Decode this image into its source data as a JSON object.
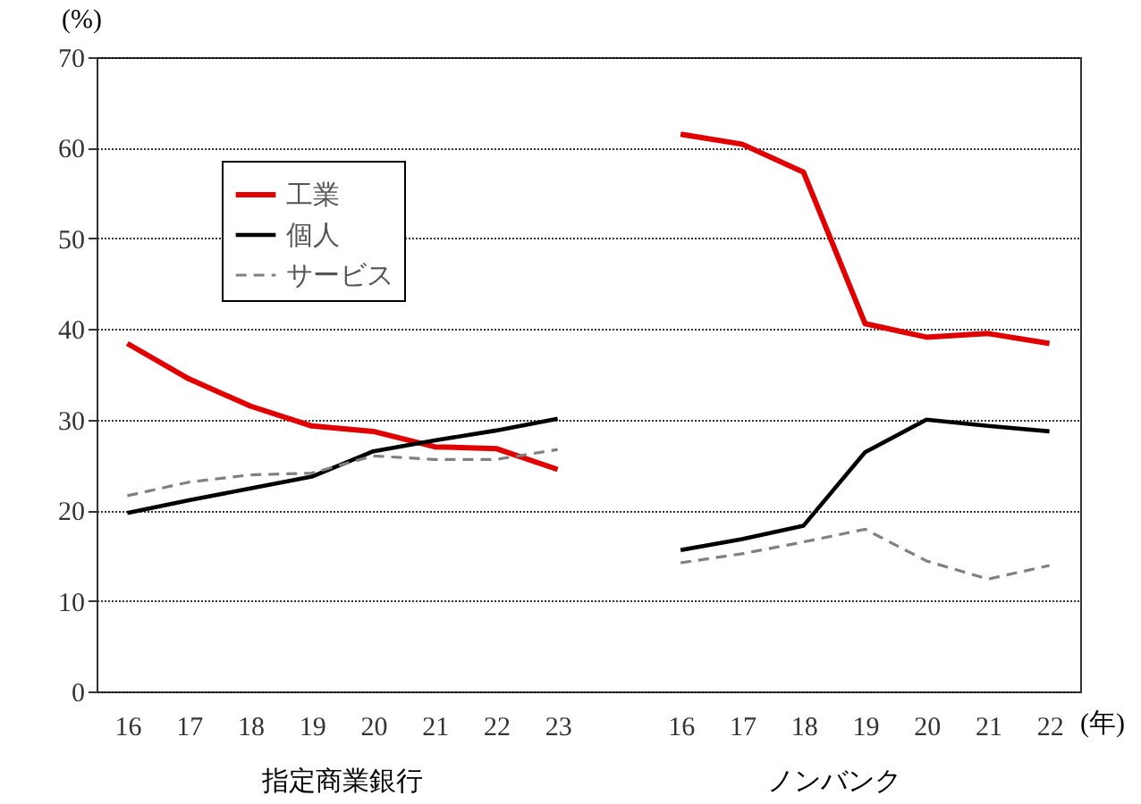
{
  "chart_data": {
    "type": "line",
    "ylabel": "(%)",
    "xlabel": "(年)",
    "categories": [
      "16",
      "17",
      "18",
      "19",
      "20",
      "21",
      "22",
      "23",
      null,
      "16",
      "17",
      "18",
      "19",
      "20",
      "21",
      "22"
    ],
    "series": [
      {
        "name": "工業",
        "color": "#e00000",
        "line_style": "solid",
        "values": [
          38.4,
          34.5,
          31.5,
          29.3,
          28.7,
          27.0,
          26.8,
          24.5,
          null,
          61.5,
          60.4,
          57.3,
          40.6,
          39.1,
          39.5,
          38.4
        ]
      },
      {
        "name": "個人",
        "color": "#000000",
        "line_style": "solid",
        "values": [
          19.7,
          21.1,
          22.4,
          23.7,
          26.5,
          27.7,
          28.8,
          30.1,
          null,
          15.6,
          16.8,
          18.3,
          26.4,
          30.0,
          29.3,
          28.7
        ]
      },
      {
        "name": "サービス",
        "color": "#808080",
        "line_style": "dashed",
        "values": [
          21.6,
          23.1,
          23.9,
          24.1,
          26.0,
          25.6,
          25.6,
          26.7,
          null,
          14.2,
          15.2,
          16.5,
          17.9,
          14.4,
          12.4,
          13.9
        ]
      }
    ],
    "ylim": [
      0,
      70
    ],
    "yticks": [
      0,
      10,
      20,
      30,
      40,
      50,
      60,
      70
    ],
    "grid": "y",
    "legend": "top left",
    "marker": "none",
    "annotations": [
      "指定商業銀行",
      "ノンバンク"
    ]
  }
}
